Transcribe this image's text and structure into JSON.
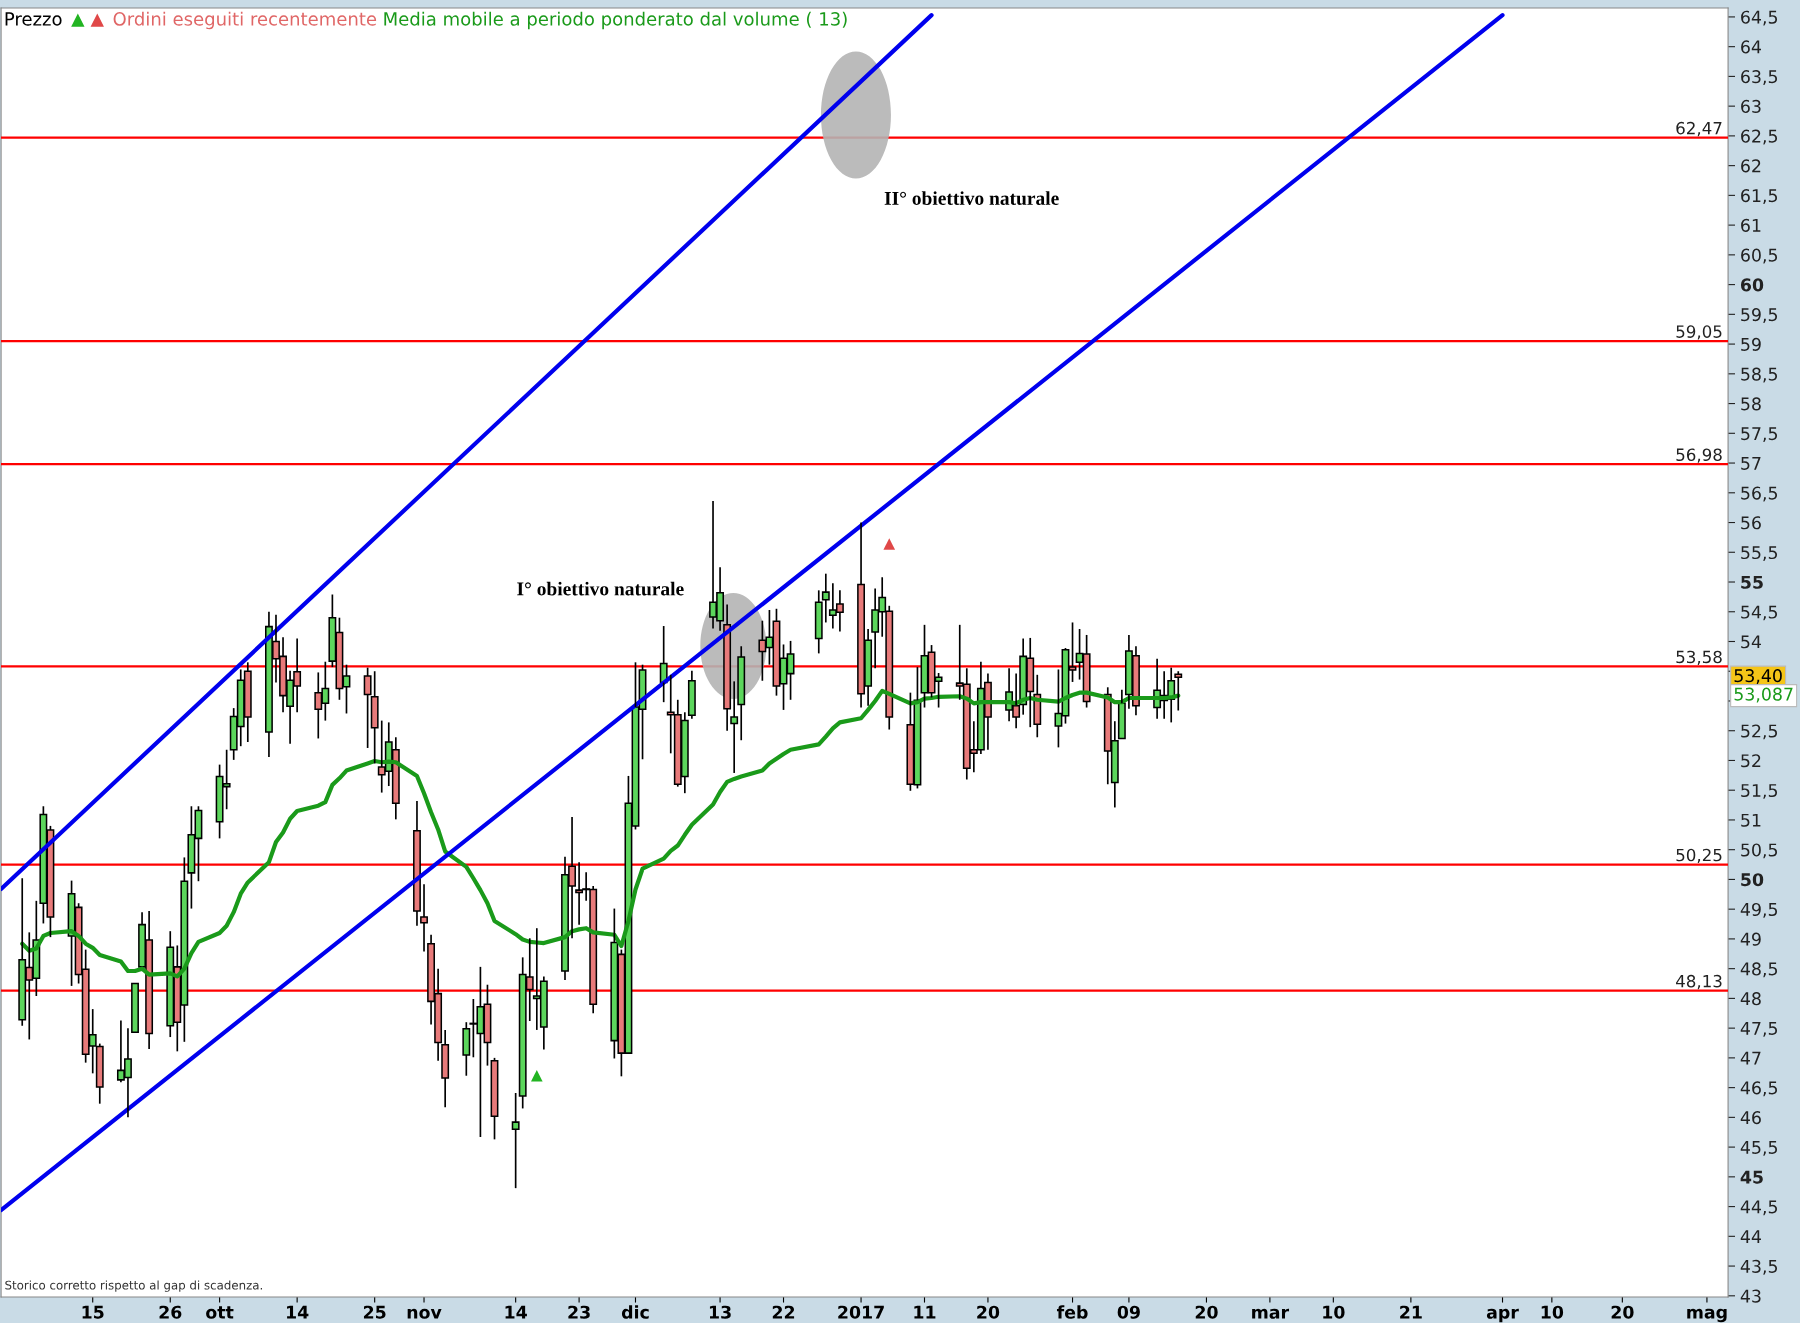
{
  "chart_data": {
    "type": "candlestick",
    "legend": "top left",
    "grid": false,
    "xlim": [
      "2016-09-02",
      "2017-05-05"
    ],
    "xticks": [
      {
        "value": "2016-09-15",
        "label": "15"
      },
      {
        "value": "2016-09-26",
        "label": "26"
      },
      {
        "value": "2016-10-03",
        "label": "ott"
      },
      {
        "value": "2016-10-14",
        "label": "14"
      },
      {
        "value": "2016-10-25",
        "label": "25"
      },
      {
        "value": "2016-11-01",
        "label": "nov"
      },
      {
        "value": "2016-11-14",
        "label": "14"
      },
      {
        "value": "2016-11-23",
        "label": "23"
      },
      {
        "value": "2016-12-01",
        "label": "dic"
      },
      {
        "value": "2016-12-13",
        "label": "13"
      },
      {
        "value": "2016-12-22",
        "label": "22"
      },
      {
        "value": "2017-01-02",
        "label": "2017"
      },
      {
        "value": "2017-01-11",
        "label": "11"
      },
      {
        "value": "2017-01-20",
        "label": "20"
      },
      {
        "value": "2017-02-01",
        "label": "feb"
      },
      {
        "value": "2017-02-09",
        "label": "09"
      },
      {
        "value": "2017-02-20",
        "label": "20"
      },
      {
        "value": "2017-03-01",
        "label": "mar"
      },
      {
        "value": "2017-03-10",
        "label": "10"
      },
      {
        "value": "2017-03-21",
        "label": "21"
      },
      {
        "value": "2017-04-03",
        "label": "apr"
      },
      {
        "value": "2017-04-10",
        "label": "10"
      },
      {
        "value": "2017-04-20",
        "label": "20"
      },
      {
        "value": "2017-05-02",
        "label": "mag"
      }
    ],
    "ylim": [
      42.98,
      64.65
    ],
    "yticks": [
      43,
      {
        "value": 43.5,
        "label": "43,5"
      },
      44,
      {
        "value": 44.5,
        "label": "44,5"
      },
      45,
      {
        "value": 45.5,
        "label": "45,5"
      },
      46,
      {
        "value": 46.5,
        "label": "46,5"
      },
      47,
      {
        "value": 47.5,
        "label": "47,5"
      },
      48,
      {
        "value": 48.5,
        "label": "48,5"
      },
      49,
      {
        "value": 49.5,
        "label": "49,5"
      },
      50,
      {
        "value": 50.5,
        "label": "50,5"
      },
      51,
      {
        "value": 51.5,
        "label": "51,5"
      },
      52,
      {
        "value": 52.5,
        "label": "52,5"
      },
      {
        "value": 53,
        "label": null
      },
      {
        "value": 53.5,
        "label": null
      },
      54,
      {
        "value": 54.5,
        "label": "54,5"
      },
      55,
      {
        "value": 55.5,
        "label": "55,5"
      },
      56,
      {
        "value": 56.5,
        "label": "56,5"
      },
      57,
      {
        "value": 57.5,
        "label": "57,5"
      },
      58,
      {
        "value": 58.5,
        "label": "58,5"
      },
      59,
      {
        "value": 59.5,
        "label": "59,5"
      },
      60,
      {
        "value": 60.5,
        "label": "60,5"
      },
      61,
      {
        "value": 61.5,
        "label": "61,5"
      },
      62,
      {
        "value": 62.5,
        "label": "62,5"
      },
      63,
      {
        "value": 63.5,
        "label": "63,5"
      },
      64,
      {
        "value": 64.5,
        "label": "64,5"
      }
    ],
    "series": [
      {
        "name": "Prezzo",
        "x": [
          "2016-09-05",
          "2016-09-06",
          "2016-09-07",
          "2016-09-08",
          "2016-09-09",
          "2016-09-12",
          "2016-09-13",
          "2016-09-14",
          "2016-09-15",
          "2016-09-16",
          "2016-09-19",
          "2016-09-20",
          "2016-09-21",
          "2016-09-22",
          "2016-09-23",
          "2016-09-26",
          "2016-09-27",
          "2016-09-28",
          "2016-09-29",
          "2016-09-30",
          "2016-10-03",
          "2016-10-04",
          "2016-10-05",
          "2016-10-06",
          "2016-10-07",
          "2016-10-10",
          "2016-10-11",
          "2016-10-12",
          "2016-10-13",
          "2016-10-14",
          "2016-10-17",
          "2016-10-18",
          "2016-10-19",
          "2016-10-20",
          "2016-10-21",
          "2016-10-24",
          "2016-10-25",
          "2016-10-26",
          "2016-10-27",
          "2016-10-28",
          "2016-10-31",
          "2016-11-01",
          "2016-11-02",
          "2016-11-03",
          "2016-11-04",
          "2016-11-07",
          "2016-11-08",
          "2016-11-09",
          "2016-11-10",
          "2016-11-11",
          "2016-11-14",
          "2016-11-15",
          "2016-11-16",
          "2016-11-17",
          "2016-11-18",
          "2016-11-21",
          "2016-11-22",
          "2016-11-23",
          "2016-11-24",
          "2016-11-25",
          "2016-11-28",
          "2016-11-29",
          "2016-11-30",
          "2016-12-01",
          "2016-12-02",
          "2016-12-05",
          "2016-12-06",
          "2016-12-07",
          "2016-12-08",
          "2016-12-09",
          "2016-12-12",
          "2016-12-13",
          "2016-12-14",
          "2016-12-15",
          "2016-12-16",
          "2016-12-19",
          "2016-12-20",
          "2016-12-21",
          "2016-12-22",
          "2016-12-23",
          "2016-12-27",
          "2016-12-28",
          "2016-12-29",
          "2016-12-30",
          "2017-01-02",
          "2017-01-03",
          "2017-01-04",
          "2017-01-05",
          "2017-01-06",
          "2017-01-09",
          "2017-01-10",
          "2017-01-11",
          "2017-01-12",
          "2017-01-13",
          "2017-01-16",
          "2017-01-17",
          "2017-01-18",
          "2017-01-19",
          "2017-01-20",
          "2017-01-23",
          "2017-01-24",
          "2017-01-25",
          "2017-01-26",
          "2017-01-27",
          "2017-01-30",
          "2017-01-31",
          "2017-02-01",
          "2017-02-02",
          "2017-02-03",
          "2017-02-06",
          "2017-02-07",
          "2017-02-08",
          "2017-02-09",
          "2017-02-10",
          "2017-02-13",
          "2017-02-14",
          "2017-02-15",
          "2017-02-16"
        ],
        "ohlc": [
          [
            47.64,
            50.02,
            47.54,
            48.65
          ],
          [
            48.52,
            49.11,
            47.31,
            48.31
          ],
          [
            48.34,
            49.64,
            48.04,
            48.98
          ],
          [
            49.6,
            51.23,
            49.26,
            51.09
          ],
          [
            50.83,
            50.9,
            49.03,
            49.37
          ],
          [
            49.05,
            49.98,
            48.21,
            49.76
          ],
          [
            49.53,
            49.6,
            48.25,
            48.4
          ],
          [
            48.49,
            48.82,
            46.92,
            47.06
          ],
          [
            47.2,
            47.82,
            46.74,
            47.39
          ],
          [
            47.19,
            47.24,
            46.23,
            46.51
          ],
          [
            46.63,
            47.63,
            46.59,
            46.79
          ],
          [
            46.67,
            47.5,
            46.0,
            46.98
          ],
          [
            47.43,
            48.25,
            47.43,
            48.25
          ],
          [
            48.53,
            49.45,
            48.53,
            49.24
          ],
          [
            48.98,
            49.47,
            47.15,
            47.41
          ],
          [
            47.54,
            49.13,
            47.35,
            48.86
          ],
          [
            48.53,
            48.89,
            47.11,
            47.6
          ],
          [
            47.89,
            50.37,
            47.27,
            49.97
          ],
          [
            50.11,
            51.23,
            49.51,
            50.75
          ],
          [
            50.69,
            51.23,
            49.97,
            51.16
          ],
          [
            50.97,
            51.93,
            50.69,
            51.73
          ],
          [
            51.56,
            52.18,
            51.18,
            51.61
          ],
          [
            52.18,
            52.88,
            52.01,
            52.74
          ],
          [
            52.57,
            53.53,
            52.24,
            53.35
          ],
          [
            53.5,
            53.65,
            52.31,
            52.73
          ],
          [
            52.48,
            54.5,
            52.06,
            54.25
          ],
          [
            54.0,
            54.45,
            53.31,
            53.71
          ],
          [
            53.75,
            54.07,
            52.81,
            53.09
          ],
          [
            52.91,
            53.51,
            52.28,
            53.35
          ],
          [
            53.49,
            54.05,
            52.81,
            53.25
          ],
          [
            53.14,
            53.48,
            52.37,
            52.86
          ],
          [
            52.96,
            53.66,
            52.67,
            53.21
          ],
          [
            53.67,
            54.79,
            53.57,
            54.4
          ],
          [
            54.15,
            54.4,
            53.02,
            53.21
          ],
          [
            53.24,
            53.61,
            52.79,
            53.42
          ],
          [
            53.42,
            53.56,
            52.21,
            53.11
          ],
          [
            53.07,
            53.5,
            51.95,
            52.55
          ],
          [
            51.89,
            52.67,
            51.46,
            51.76
          ],
          [
            51.82,
            52.64,
            51.57,
            52.31
          ],
          [
            52.18,
            52.39,
            51.01,
            51.28
          ],
          [
            50.82,
            51.32,
            49.22,
            49.47
          ],
          [
            49.37,
            49.92,
            48.79,
            49.27
          ],
          [
            48.92,
            49.07,
            47.56,
            47.95
          ],
          [
            48.08,
            48.5,
            46.95,
            47.26
          ],
          [
            47.22,
            47.47,
            46.17,
            46.66
          ],
          [
            47.05,
            47.6,
            46.7,
            47.49
          ],
          [
            47.57,
            47.99,
            47.01,
            47.58
          ],
          [
            47.41,
            48.53,
            45.67,
            47.86
          ],
          [
            47.9,
            48.23,
            46.87,
            47.26
          ],
          [
            46.95,
            47.0,
            45.63,
            46.02
          ],
          [
            45.8,
            46.41,
            44.81,
            45.92
          ],
          [
            46.36,
            48.69,
            46.15,
            48.4
          ],
          [
            48.36,
            49.01,
            47.62,
            48.15
          ],
          [
            48.0,
            49.18,
            47.47,
            48.04
          ],
          [
            47.52,
            48.37,
            47.14,
            48.29
          ],
          [
            48.46,
            50.38,
            48.31,
            50.08
          ],
          [
            50.22,
            51.05,
            49.01,
            49.89
          ],
          [
            49.82,
            50.29,
            49.24,
            49.78
          ],
          [
            49.83,
            50.12,
            49.64,
            49.84
          ],
          [
            49.83,
            49.89,
            47.75,
            47.9
          ],
          [
            47.29,
            49.51,
            46.99,
            48.94
          ],
          [
            48.74,
            48.82,
            46.69,
            47.08
          ],
          [
            47.08,
            51.74,
            47.08,
            51.28
          ],
          [
            50.9,
            53.65,
            50.84,
            52.9
          ],
          [
            52.86,
            53.61,
            52.02,
            53.52
          ],
          [
            53.31,
            54.26,
            52.98,
            53.63
          ],
          [
            52.81,
            53.44,
            52.12,
            52.77
          ],
          [
            52.77,
            53.02,
            51.56,
            51.6
          ],
          [
            51.73,
            52.81,
            51.45,
            52.67
          ],
          [
            52.76,
            53.51,
            52.7,
            53.34
          ],
          [
            54.41,
            56.36,
            54.22,
            54.66
          ],
          [
            54.35,
            55.25,
            54.18,
            54.82
          ],
          [
            54.28,
            54.62,
            52.5,
            52.87
          ],
          [
            52.62,
            53.33,
            51.79,
            52.73
          ],
          [
            52.94,
            53.92,
            52.34,
            53.74
          ],
          [
            54.02,
            54.35,
            53.34,
            53.83
          ],
          [
            53.9,
            54.53,
            53.61,
            54.07
          ],
          [
            54.34,
            54.55,
            53.09,
            53.25
          ],
          [
            53.29,
            53.95,
            52.85,
            53.72
          ],
          [
            53.46,
            54.01,
            53.02,
            53.79
          ],
          [
            54.05,
            54.86,
            53.8,
            54.66
          ],
          [
            54.7,
            55.14,
            54.32,
            54.83
          ],
          [
            54.44,
            54.98,
            54.22,
            54.53
          ],
          [
            54.63,
            54.86,
            54.17,
            54.49
          ],
          [
            54.96,
            56.0,
            52.89,
            53.12
          ],
          [
            53.25,
            54.21,
            52.92,
            54.02
          ],
          [
            54.16,
            54.89,
            53.55,
            54.53
          ],
          [
            54.5,
            55.08,
            54.08,
            54.74
          ],
          [
            54.51,
            54.6,
            52.52,
            52.73
          ],
          [
            52.6,
            53.14,
            51.49,
            51.6
          ],
          [
            51.59,
            53.57,
            51.53,
            53.01
          ],
          [
            53.14,
            54.28,
            52.89,
            53.76
          ],
          [
            53.82,
            53.94,
            53.06,
            53.14
          ],
          [
            53.33,
            53.47,
            52.89,
            53.4
          ],
          [
            53.3,
            54.28,
            53.02,
            53.25
          ],
          [
            53.28,
            53.55,
            51.68,
            51.87
          ],
          [
            52.18,
            52.66,
            51.8,
            52.12
          ],
          [
            52.18,
            53.66,
            52.11,
            53.21
          ],
          [
            53.31,
            53.46,
            52.18,
            52.73
          ],
          [
            52.85,
            53.55,
            52.66,
            53.15
          ],
          [
            52.92,
            53.46,
            52.54,
            52.73
          ],
          [
            52.94,
            54.05,
            52.77,
            53.75
          ],
          [
            53.72,
            54.06,
            52.56,
            53.16
          ],
          [
            53.11,
            53.44,
            52.39,
            52.61
          ],
          [
            52.58,
            53.53,
            52.22,
            52.79
          ],
          [
            52.75,
            53.89,
            52.62,
            53.86
          ],
          [
            53.57,
            54.32,
            53.32,
            53.52
          ],
          [
            53.65,
            54.21,
            53.36,
            53.8
          ],
          [
            53.79,
            54.11,
            52.89,
            52.99
          ],
          [
            53.11,
            53.23,
            51.6,
            52.16
          ],
          [
            51.63,
            52.66,
            51.21,
            52.33
          ],
          [
            52.37,
            53.19,
            52.37,
            52.96
          ],
          [
            53.11,
            54.11,
            52.87,
            53.84
          ],
          [
            53.76,
            53.92,
            52.76,
            52.92
          ],
          [
            52.89,
            53.71,
            52.7,
            53.18
          ],
          [
            53.01,
            53.5,
            52.7,
            53.09
          ],
          [
            53.03,
            53.56,
            52.64,
            53.34
          ],
          [
            53.45,
            53.5,
            52.84,
            53.4
          ]
        ],
        "colors": [
          "#5cd65c",
          "#e87a7a",
          "#5cd65c",
          "#5cd65c",
          "#e87a7a",
          "#5cd65c",
          "#e87a7a",
          "#e87a7a",
          "#5cd65c",
          "#e87a7a",
          "#5cd65c",
          "#5cd65c",
          "#5cd65c",
          "#5cd65c",
          "#e87a7a",
          "#5cd65c",
          "#e87a7a",
          "#5cd65c",
          "#5cd65c",
          "#5cd65c",
          "#5cd65c",
          "#5cd65c",
          "#5cd65c",
          "#5cd65c",
          "#e87a7a",
          "#5cd65c",
          "#e87a7a",
          "#e87a7a",
          "#5cd65c",
          "#e87a7a",
          "#e87a7a",
          "#5cd65c",
          "#5cd65c",
          "#e87a7a",
          "#5cd65c",
          "#e87a7a",
          "#e87a7a",
          "#e87a7a",
          "#5cd65c",
          "#e87a7a",
          "#e87a7a",
          "#e87a7a",
          "#e87a7a",
          "#e87a7a",
          "#e87a7a",
          "#5cd65c",
          "#5cd65c",
          "#5cd65c",
          "#e87a7a",
          "#e87a7a",
          "#5cd65c",
          "#5cd65c",
          "#e87a7a",
          "#5cd65c",
          "#5cd65c",
          "#5cd65c",
          "#e87a7a",
          "#e87a7a",
          "#5cd65c",
          "#e87a7a",
          "#5cd65c",
          "#e87a7a",
          "#5cd65c",
          "#5cd65c",
          "#5cd65c",
          "#5cd65c",
          "#e87a7a",
          "#e87a7a",
          "#5cd65c",
          "#5cd65c",
          "#5cd65c",
          "#5cd65c",
          "#e87a7a",
          "#5cd65c",
          "#5cd65c",
          "#e87a7a",
          "#5cd65c",
          "#e87a7a",
          "#5cd65c",
          "#5cd65c",
          "#5cd65c",
          "#5cd65c",
          "#5cd65c",
          "#e87a7a",
          "#e87a7a",
          "#5cd65c",
          "#5cd65c",
          "#5cd65c",
          "#e87a7a",
          "#e87a7a",
          "#5cd65c",
          "#5cd65c",
          "#e87a7a",
          "#5cd65c",
          "#e87a7a",
          "#e87a7a",
          "#e87a7a",
          "#5cd65c",
          "#e87a7a",
          "#5cd65c",
          "#e87a7a",
          "#5cd65c",
          "#e87a7a",
          "#e87a7a",
          "#5cd65c",
          "#5cd65c",
          "#e87a7a",
          "#5cd65c",
          "#e87a7a",
          "#e87a7a",
          "#5cd65c",
          "#5cd65c",
          "#5cd65c",
          "#e87a7a",
          "#5cd65c",
          "#5cd65c",
          "#5cd65c",
          "#e87a7a"
        ]
      },
      {
        "type": "scatter",
        "name": "Ordini eseguiti recentemente",
        "color": "#e06666",
        "marker": "triangle",
        "x": [
          "2016-11-17",
          "2017-01-06"
        ],
        "values": [
          46.7,
          55.64
        ],
        "colors": [
          "#22b422",
          "#e04848"
        ]
      },
      {
        "type": "line",
        "name": "Media mobile a periodo ponderato dal volume ( 13)",
        "color": "#1a9a1a",
        "x": [
          "2016-09-05",
          "2016-09-06",
          "2016-09-07",
          "2016-09-08",
          "2016-09-09",
          "2016-09-12",
          "2016-09-13",
          "2016-09-14",
          "2016-09-15",
          "2016-09-16",
          "2016-09-19",
          "2016-09-20",
          "2016-09-21",
          "2016-09-22",
          "2016-09-23",
          "2016-09-26",
          "2016-09-27",
          "2016-09-28",
          "2016-09-29",
          "2016-09-30",
          "2016-10-03",
          "2016-10-04",
          "2016-10-05",
          "2016-10-06",
          "2016-10-07",
          "2016-10-10",
          "2016-10-11",
          "2016-10-12",
          "2016-10-13",
          "2016-10-14",
          "2016-10-17",
          "2016-10-18",
          "2016-10-19",
          "2016-10-20",
          "2016-10-21",
          "2016-10-24",
          "2016-10-25",
          "2016-10-26",
          "2016-10-27",
          "2016-10-28",
          "2016-10-31",
          "2016-11-01",
          "2016-11-02",
          "2016-11-03",
          "2016-11-04",
          "2016-11-07",
          "2016-11-08",
          "2016-11-09",
          "2016-11-10",
          "2016-11-11",
          "2016-11-14",
          "2016-11-15",
          "2016-11-16",
          "2016-11-17",
          "2016-11-18",
          "2016-11-21",
          "2016-11-22",
          "2016-11-23",
          "2016-11-24",
          "2016-11-25",
          "2016-11-28",
          "2016-11-29",
          "2016-11-30",
          "2016-12-01",
          "2016-12-02",
          "2016-12-05",
          "2016-12-06",
          "2016-12-07",
          "2016-12-08",
          "2016-12-09",
          "2016-12-12",
          "2016-12-13",
          "2016-12-14",
          "2016-12-15",
          "2016-12-16",
          "2016-12-19",
          "2016-12-20",
          "2016-12-21",
          "2016-12-22",
          "2016-12-23",
          "2016-12-27",
          "2016-12-28",
          "2016-12-29",
          "2016-12-30",
          "2017-01-02",
          "2017-01-03",
          "2017-01-04",
          "2017-01-05",
          "2017-01-06",
          "2017-01-09",
          "2017-01-10",
          "2017-01-11",
          "2017-01-12",
          "2017-01-13",
          "2017-01-16",
          "2017-01-17",
          "2017-01-18",
          "2017-01-19",
          "2017-01-20",
          "2017-01-23",
          "2017-01-24",
          "2017-01-25",
          "2017-01-26",
          "2017-01-27",
          "2017-01-30",
          "2017-01-31",
          "2017-02-01",
          "2017-02-02",
          "2017-02-03",
          "2017-02-06",
          "2017-02-07",
          "2017-02-08",
          "2017-02-09",
          "2017-02-10",
          "2017-02-13",
          "2017-02-14",
          "2017-02-15",
          "2017-02-16"
        ],
        "values": [
          48.92,
          48.8,
          48.84,
          49.05,
          49.1,
          49.13,
          49.05,
          48.92,
          48.85,
          48.73,
          48.62,
          48.46,
          48.46,
          48.5,
          48.4,
          48.42,
          48.37,
          48.5,
          48.76,
          48.95,
          49.1,
          49.22,
          49.45,
          49.76,
          49.95,
          50.29,
          50.63,
          50.79,
          51.02,
          51.15,
          51.24,
          51.3,
          51.59,
          51.7,
          51.83,
          51.95,
          51.99,
          51.97,
          51.98,
          51.97,
          51.74,
          51.45,
          51.13,
          50.84,
          50.47,
          50.21,
          50.02,
          49.82,
          49.6,
          49.3,
          49.08,
          48.99,
          48.95,
          48.94,
          48.93,
          49.03,
          49.13,
          49.16,
          49.18,
          49.11,
          49.07,
          48.88,
          49.3,
          49.83,
          50.18,
          50.35,
          50.48,
          50.57,
          50.75,
          50.92,
          51.26,
          51.47,
          51.64,
          51.69,
          51.73,
          51.83,
          51.95,
          52.03,
          52.11,
          52.18,
          52.27,
          52.4,
          52.54,
          52.64,
          52.71,
          52.85,
          53.0,
          53.17,
          53.12,
          52.96,
          52.98,
          53.04,
          53.05,
          53.07,
          53.08,
          53.04,
          52.96,
          52.98,
          52.98,
          52.98,
          52.96,
          53.02,
          53.05,
          53.02,
          52.99,
          53.05,
          53.1,
          53.14,
          53.14,
          53.06,
          52.98,
          52.98,
          53.05,
          53.05,
          53.05,
          53.05,
          53.06,
          53.09
        ]
      },
      {
        "type": "line",
        "color": "#0000ee",
        "x": [
          "2016-09-02",
          "2017-04-03"
        ],
        "values": [
          44.44,
          64.53
        ]
      },
      {
        "type": "line",
        "color": "#0000ee",
        "x": [
          "2016-09-02",
          "2017-01-12"
        ],
        "values": [
          49.84,
          64.53
        ]
      }
    ],
    "ref_lines": [
      {
        "axis": "y",
        "value": 62.47,
        "label": "62,47",
        "color": "#ff0000"
      },
      {
        "axis": "y",
        "value": 59.05,
        "label": "59,05",
        "color": "#ff0000"
      },
      {
        "axis": "y",
        "value": 56.98,
        "label": "56,98",
        "color": "#ff0000"
      },
      {
        "axis": "y",
        "value": 53.58,
        "label": "53,58",
        "color": "#ff0000"
      },
      {
        "axis": "y",
        "value": 50.25,
        "label": "50,25",
        "color": "#ff0000"
      },
      {
        "axis": "y",
        "value": 48.13,
        "label": "48,13",
        "color": "#ff0000"
      }
    ],
    "annotations": [
      "II° obiettivo naturale",
      "I° obiettivo naturale",
      "53,40",
      "53,087",
      "Storico corretto rispetto al gap di scadenza."
    ]
  }
}
